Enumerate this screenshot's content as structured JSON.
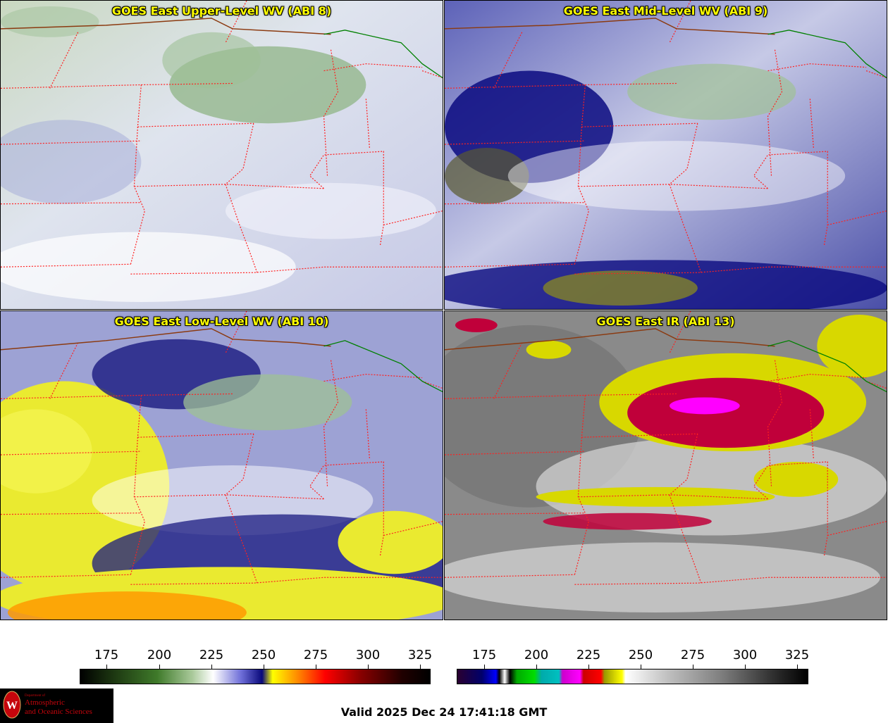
{
  "panels": [
    {
      "title": "GOES East Upper-Level WV (ABI 8)"
    },
    {
      "title": "GOES East Mid-Level WV (ABI 9)"
    },
    {
      "title": "GOES East Low-Level WV (ABI 10)"
    },
    {
      "title": "GOES East IR (ABI 13)"
    }
  ],
  "colorbars": [
    {
      "ticks": [
        "175",
        "200",
        "225",
        "250",
        "275",
        "300",
        "325"
      ]
    },
    {
      "ticks": [
        "175",
        "200",
        "225",
        "250",
        "275",
        "300",
        "325"
      ]
    }
  ],
  "valid_time": "Valid 2025 Dec 24 17:41:18 GMT",
  "logo": {
    "line1": "Department of",
    "line2": "Atmospheric",
    "line3": "and Oceanic Sciences",
    "icon": "uw-crest-icon"
  },
  "colors": {
    "title_text": "#ffff00",
    "state_borders": "#ff2020",
    "country_border": "#8b3a10",
    "coast": "#008000"
  }
}
